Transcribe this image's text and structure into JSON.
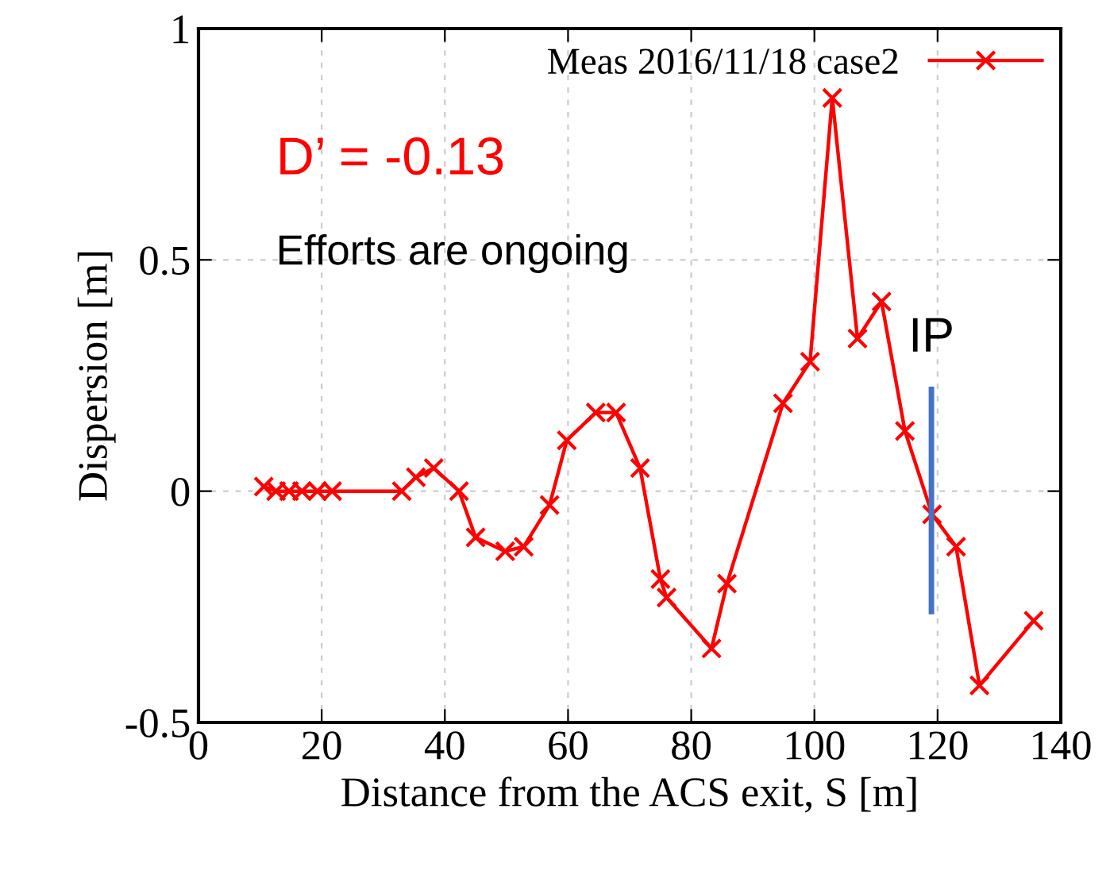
{
  "chart_data": {
    "type": "line",
    "xlabel": "Distance from the ACS exit, S [m]",
    "ylabel": "Dispersion [m]",
    "xlim": [
      0,
      140
    ],
    "xticks": [
      0,
      20,
      40,
      60,
      80,
      100,
      120,
      140
    ],
    "ylim": [
      -0.5,
      1
    ],
    "yticks": [
      -0.5,
      0,
      0.5,
      1
    ],
    "grid": true,
    "legend": "top right",
    "marker": "cross",
    "line_style": "solid",
    "series": [
      {
        "name": "Meas 2016/11/18 case2",
        "color": "#ff0000",
        "x": [
          10.6,
          12.6,
          14.7,
          16.8,
          19.3,
          21.7,
          33,
          35.3,
          38.2,
          42.3,
          45,
          49.8,
          52.8,
          57,
          59.8,
          64.5,
          67.8,
          71.7,
          75,
          76,
          83.3,
          85.8,
          94.9,
          99.3,
          102.9,
          107,
          110.9,
          114.7,
          119.1,
          123,
          126.8,
          135.6
        ],
        "values": [
          0.01,
          0,
          0,
          0,
          0,
          0,
          0,
          0.03,
          0.05,
          0,
          -0.1,
          -0.13,
          -0.12,
          -0.03,
          0.11,
          0.17,
          0.17,
          0.05,
          -0.19,
          -0.23,
          -0.34,
          -0.2,
          0.19,
          0.28,
          0.85,
          0.33,
          0.41,
          0.13,
          -0.05,
          -0.12,
          -0.42,
          -0.28
        ]
      }
    ],
    "ref_lines": [
      {
        "axis": "x",
        "value": 119,
        "label": "IP",
        "color": "#4472c4"
      }
    ],
    "annotations": [
      "D’ = -0.13",
      "Efforts are ongoing"
    ]
  }
}
